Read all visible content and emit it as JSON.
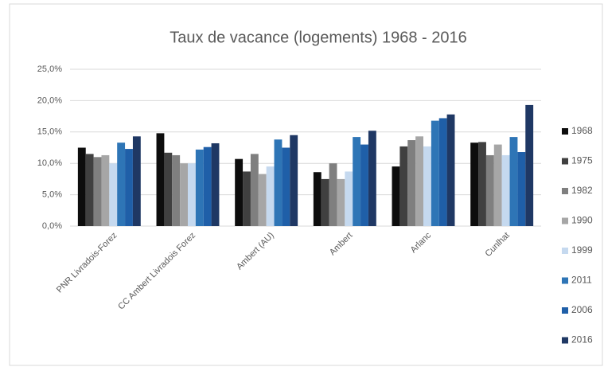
{
  "chart_data": {
    "type": "bar",
    "title": "Taux de vacance (logements) 1968 - 2016",
    "categories": [
      "PNR Livradois-Forez",
      "CC Ambert Livradois Forez",
      "Ambert (AU)",
      "Ambert",
      "Arlanc",
      "Cunlhat"
    ],
    "series": [
      {
        "name": "1968",
        "color": "#0d0d0d",
        "values": [
          12.5,
          14.8,
          10.7,
          8.6,
          9.5,
          13.3
        ]
      },
      {
        "name": "1975",
        "color": "#404040",
        "values": [
          11.5,
          11.7,
          8.7,
          7.5,
          12.7,
          13.4
        ]
      },
      {
        "name": "1982",
        "color": "#7f7f7f",
        "values": [
          11.0,
          11.3,
          11.5,
          10.0,
          13.7,
          11.3
        ]
      },
      {
        "name": "1990",
        "color": "#a6a6a6",
        "values": [
          11.3,
          10.0,
          8.3,
          7.5,
          14.3,
          13.0
        ]
      },
      {
        "name": "1999",
        "color": "#c5d9ef",
        "values": [
          10.0,
          10.0,
          9.5,
          8.7,
          12.7,
          11.3
        ]
      },
      {
        "name": "2011",
        "color": "#2e75b6",
        "values": [
          13.3,
          12.2,
          13.8,
          14.2,
          16.8,
          14.2
        ]
      },
      {
        "name": "2006",
        "color": "#1f5fa8",
        "values": [
          12.3,
          12.6,
          12.5,
          13.0,
          17.2,
          11.8
        ]
      },
      {
        "name": "2016",
        "color": "#1f3864",
        "values": [
          14.3,
          13.2,
          14.5,
          15.2,
          17.8,
          19.3
        ]
      }
    ],
    "ylim": [
      0,
      25
    ],
    "yticks": [
      {
        "value": 0,
        "label": "0,0%"
      },
      {
        "value": 5,
        "label": "5,0%"
      },
      {
        "value": 10,
        "label": "10,0%"
      },
      {
        "value": 15,
        "label": "15,0%"
      },
      {
        "value": 20,
        "label": "20,0%"
      },
      {
        "value": 25,
        "label": "25,0%"
      }
    ],
    "grid": true,
    "legend": "right"
  }
}
